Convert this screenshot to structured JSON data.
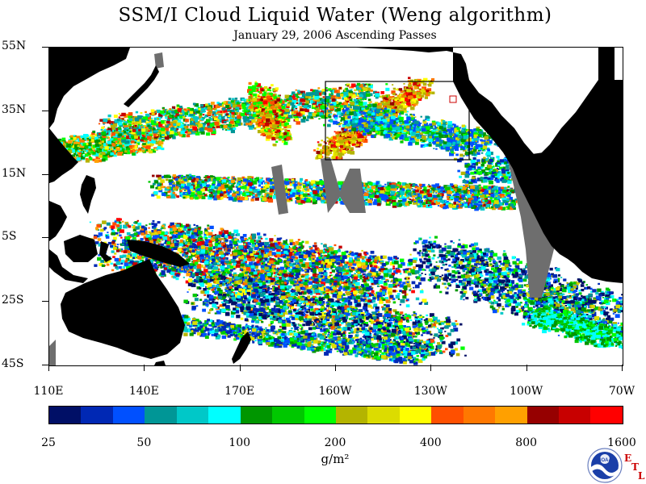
{
  "title": "SSM/I Cloud Liquid Water (Weng algorithm)",
  "subtitle": "January 29, 2006  Ascending Passes",
  "lat_labels": [
    "55N",
    "35N",
    "15N",
    "5S",
    "25S",
    "45S"
  ],
  "lon_labels": [
    "110E",
    "140E",
    "170E",
    "160W",
    "130W",
    "100W",
    "70W"
  ],
  "colorbar": {
    "colors": [
      "#000f66",
      "#0028b4",
      "#0050ff",
      "#009696",
      "#00c8c8",
      "#00ffff",
      "#009600",
      "#00c800",
      "#00ff00",
      "#b4b400",
      "#dcdc00",
      "#ffff00",
      "#ff5000",
      "#ff7800",
      "#ffa000",
      "#960000",
      "#c80000",
      "#ff0000"
    ],
    "tick_labels": [
      "25",
      "50",
      "100",
      "200",
      "400",
      "800",
      "1600"
    ]
  },
  "units": "g/m²",
  "logo": {
    "name": "NOAA",
    "text": "NOAA"
  },
  "etl_letters": [
    "E",
    "T",
    "L"
  ],
  "colors": {
    "land": "#000000",
    "missing": "#6e6e6e",
    "clear": "#ffffff",
    "box": "#000000"
  }
}
